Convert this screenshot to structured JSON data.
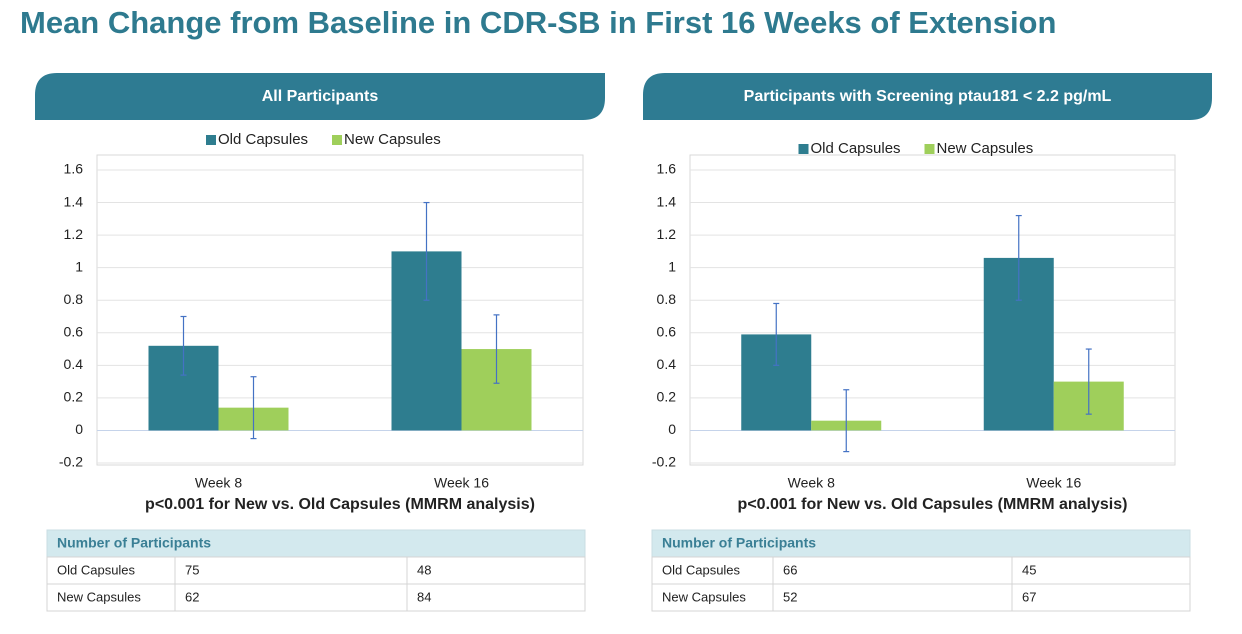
{
  "title": "Mean Change from Baseline in CDR-SB in First 16 Weeks of Extension",
  "chart_data": [
    {
      "type": "bar",
      "title": "All Participants",
      "categories": [
        "Week 8",
        "Week 16"
      ],
      "series": [
        {
          "name": "Old Capsules",
          "color": "#2e7d8f",
          "values": [
            0.52,
            1.1
          ],
          "errors": [
            0.18,
            0.3
          ]
        },
        {
          "name": "New Capsules",
          "color": "#9fcf5b",
          "values": [
            0.14,
            0.5
          ],
          "errors": [
            0.19,
            0.21
          ]
        }
      ],
      "error_color": "#4472c4",
      "ylim": [
        -0.2,
        1.6
      ],
      "yticks": [
        -0.2,
        0,
        0.2,
        0.4,
        0.6,
        0.8,
        1,
        1.2,
        1.4,
        1.6
      ],
      "grid": true,
      "note": "p<0.001 for New vs. Old Capsules (MMRM analysis)",
      "table": {
        "header": "Number of Participants",
        "rows": [
          [
            "Old Capsules",
            "75",
            "48"
          ],
          [
            "New Capsules",
            "62",
            "84"
          ]
        ]
      }
    },
    {
      "type": "bar",
      "title": "Participants with Screening ptau181 < 2.2 pg/mL",
      "categories": [
        "Week 8",
        "Week 16"
      ],
      "series": [
        {
          "name": "Old Capsules",
          "color": "#2e7d8f",
          "values": [
            0.59,
            1.06
          ],
          "errors": [
            0.19,
            0.26
          ]
        },
        {
          "name": "New Capsules",
          "color": "#9fcf5b",
          "values": [
            0.06,
            0.3
          ],
          "errors": [
            0.19,
            0.2
          ]
        }
      ],
      "error_color": "#4472c4",
      "ylim": [
        -0.2,
        1.6
      ],
      "yticks": [
        -0.2,
        0,
        0.2,
        0.4,
        0.6,
        0.8,
        1,
        1.2,
        1.4,
        1.6
      ],
      "grid": true,
      "note": "p<0.001 for New vs. Old Capsules (MMRM analysis)",
      "table": {
        "header": "Number of Participants",
        "rows": [
          [
            "Old Capsules",
            "66",
            "45"
          ],
          [
            "New Capsules",
            "52",
            "67"
          ]
        ]
      }
    }
  ]
}
